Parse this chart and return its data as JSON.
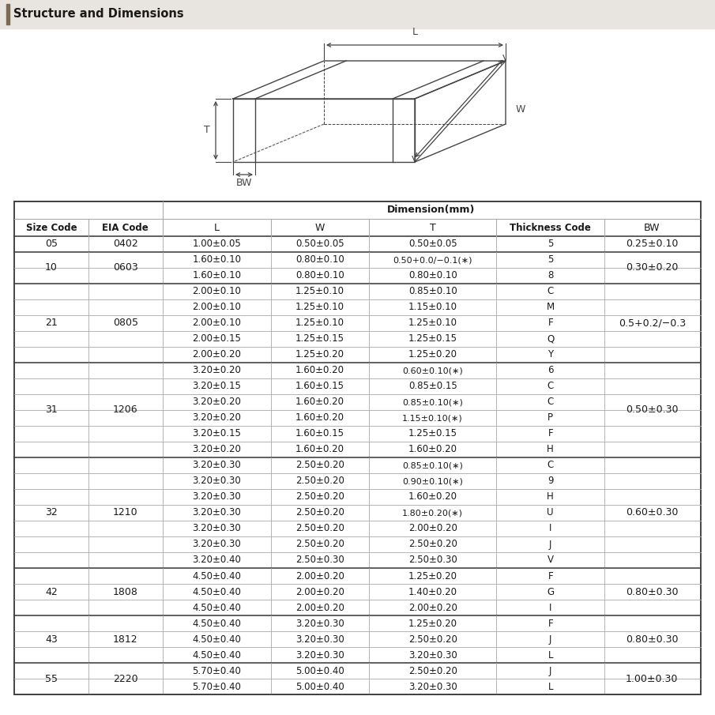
{
  "title": "Structure and Dimensions",
  "header_bg": "#e8e4df",
  "title_bar_color": "#7a6a55",
  "rows": [
    {
      "size": "05",
      "eia": "0402",
      "L": "1.00±0.05",
      "W": "0.50±0.05",
      "T": "0.50±0.05",
      "TC": "5",
      "BW": "0.25±0.10",
      "size_span": 1,
      "bw_span": 1
    },
    {
      "size": "10",
      "eia": "0603",
      "L": "1.60±0.10",
      "W": "0.80±0.10",
      "T": "0.50+0.0/−0.1(∗)",
      "TC": "5",
      "BW": "0.30±0.20",
      "size_span": 2,
      "bw_span": 2
    },
    {
      "size": "",
      "eia": "",
      "L": "1.60±0.10",
      "W": "0.80±0.10",
      "T": "0.80±0.10",
      "TC": "8",
      "BW": "",
      "size_span": 0,
      "bw_span": 0
    },
    {
      "size": "21",
      "eia": "0805",
      "L": "2.00±0.10",
      "W": "1.25±0.10",
      "T": "0.85±0.10",
      "TC": "C",
      "BW": "0.5+0.2/−0.3",
      "size_span": 5,
      "bw_span": 5
    },
    {
      "size": "",
      "eia": "",
      "L": "2.00±0.10",
      "W": "1.25±0.10",
      "T": "1.15±0.10",
      "TC": "M",
      "BW": "",
      "size_span": 0,
      "bw_span": 0
    },
    {
      "size": "",
      "eia": "",
      "L": "2.00±0.10",
      "W": "1.25±0.10",
      "T": "1.25±0.10",
      "TC": "F",
      "BW": "",
      "size_span": 0,
      "bw_span": 0
    },
    {
      "size": "",
      "eia": "",
      "L": "2.00±0.15",
      "W": "1.25±0.15",
      "T": "1.25±0.15",
      "TC": "Q",
      "BW": "",
      "size_span": 0,
      "bw_span": 0
    },
    {
      "size": "",
      "eia": "",
      "L": "2.00±0.20",
      "W": "1.25±0.20",
      "T": "1.25±0.20",
      "TC": "Y",
      "BW": "",
      "size_span": 0,
      "bw_span": 0
    },
    {
      "size": "31",
      "eia": "1206",
      "L": "3.20±0.20",
      "W": "1.60±0.20",
      "T": "0.60±0.10(∗)",
      "TC": "6",
      "BW": "0.50±0.30",
      "size_span": 6,
      "bw_span": 6
    },
    {
      "size": "",
      "eia": "",
      "L": "3.20±0.15",
      "W": "1.60±0.15",
      "T": "0.85±0.15",
      "TC": "C",
      "BW": "",
      "size_span": 0,
      "bw_span": 0
    },
    {
      "size": "",
      "eia": "",
      "L": "3.20±0.20",
      "W": "1.60±0.20",
      "T": "0.85±0.10(∗)",
      "TC": "C",
      "BW": "",
      "size_span": 0,
      "bw_span": 0
    },
    {
      "size": "",
      "eia": "",
      "L": "3.20±0.20",
      "W": "1.60±0.20",
      "T": "1.15±0.10(∗)",
      "TC": "P",
      "BW": "",
      "size_span": 0,
      "bw_span": 0
    },
    {
      "size": "",
      "eia": "",
      "L": "3.20±0.15",
      "W": "1.60±0.15",
      "T": "1.25±0.15",
      "TC": "F",
      "BW": "",
      "size_span": 0,
      "bw_span": 0
    },
    {
      "size": "",
      "eia": "",
      "L": "3.20±0.20",
      "W": "1.60±0.20",
      "T": "1.60±0.20",
      "TC": "H",
      "BW": "",
      "size_span": 0,
      "bw_span": 0
    },
    {
      "size": "32",
      "eia": "1210",
      "L": "3.20±0.30",
      "W": "2.50±0.20",
      "T": "0.85±0.10(∗)",
      "TC": "C",
      "BW": "0.60±0.30",
      "size_span": 7,
      "bw_span": 7
    },
    {
      "size": "",
      "eia": "",
      "L": "3.20±0.30",
      "W": "2.50±0.20",
      "T": "0.90±0.10(∗)",
      "TC": "9",
      "BW": "",
      "size_span": 0,
      "bw_span": 0
    },
    {
      "size": "",
      "eia": "",
      "L": "3.20±0.30",
      "W": "2.50±0.20",
      "T": "1.60±0.20",
      "TC": "H",
      "BW": "",
      "size_span": 0,
      "bw_span": 0
    },
    {
      "size": "",
      "eia": "",
      "L": "3.20±0.30",
      "W": "2.50±0.20",
      "T": "1.80±0.20(∗)",
      "TC": "U",
      "BW": "",
      "size_span": 0,
      "bw_span": 0
    },
    {
      "size": "",
      "eia": "",
      "L": "3.20±0.30",
      "W": "2.50±0.20",
      "T": "2.00±0.20",
      "TC": "I",
      "BW": "",
      "size_span": 0,
      "bw_span": 0
    },
    {
      "size": "",
      "eia": "",
      "L": "3.20±0.30",
      "W": "2.50±0.20",
      "T": "2.50±0.20",
      "TC": "J",
      "BW": "",
      "size_span": 0,
      "bw_span": 0
    },
    {
      "size": "",
      "eia": "",
      "L": "3.20±0.40",
      "W": "2.50±0.30",
      "T": "2.50±0.30",
      "TC": "V",
      "BW": "",
      "size_span": 0,
      "bw_span": 0
    },
    {
      "size": "42",
      "eia": "1808",
      "L": "4.50±0.40",
      "W": "2.00±0.20",
      "T": "1.25±0.20",
      "TC": "F",
      "BW": "0.80±0.30",
      "size_span": 3,
      "bw_span": 3
    },
    {
      "size": "",
      "eia": "",
      "L": "4.50±0.40",
      "W": "2.00±0.20",
      "T": "1.40±0.20",
      "TC": "G",
      "BW": "",
      "size_span": 0,
      "bw_span": 0
    },
    {
      "size": "",
      "eia": "",
      "L": "4.50±0.40",
      "W": "2.00±0.20",
      "T": "2.00±0.20",
      "TC": "I",
      "BW": "",
      "size_span": 0,
      "bw_span": 0
    },
    {
      "size": "43",
      "eia": "1812",
      "L": "4.50±0.40",
      "W": "3.20±0.30",
      "T": "1.25±0.20",
      "TC": "F",
      "BW": "0.80±0.30",
      "size_span": 3,
      "bw_span": 3
    },
    {
      "size": "",
      "eia": "",
      "L": "4.50±0.40",
      "W": "3.20±0.30",
      "T": "2.50±0.20",
      "TC": "J",
      "BW": "",
      "size_span": 0,
      "bw_span": 0
    },
    {
      "size": "",
      "eia": "",
      "L": "4.50±0.40",
      "W": "3.20±0.30",
      "T": "3.20±0.30",
      "TC": "L",
      "BW": "",
      "size_span": 0,
      "bw_span": 0
    },
    {
      "size": "55",
      "eia": "2220",
      "L": "5.70±0.40",
      "W": "5.00±0.40",
      "T": "2.50±0.20",
      "TC": "J",
      "BW": "1.00±0.30",
      "size_span": 2,
      "bw_span": 2
    },
    {
      "size": "",
      "eia": "",
      "L": "5.70±0.40",
      "W": "5.00±0.40",
      "T": "3.20±0.30",
      "TC": "L",
      "BW": "",
      "size_span": 0,
      "bw_span": 0
    }
  ],
  "bg_color": "#ffffff",
  "table_line_color": "#aaaaaa",
  "thick_line_color": "#444444",
  "text_color": "#1a1a1a",
  "header_text_color": "#1a1a1a",
  "diagram_line_color": "#444444"
}
